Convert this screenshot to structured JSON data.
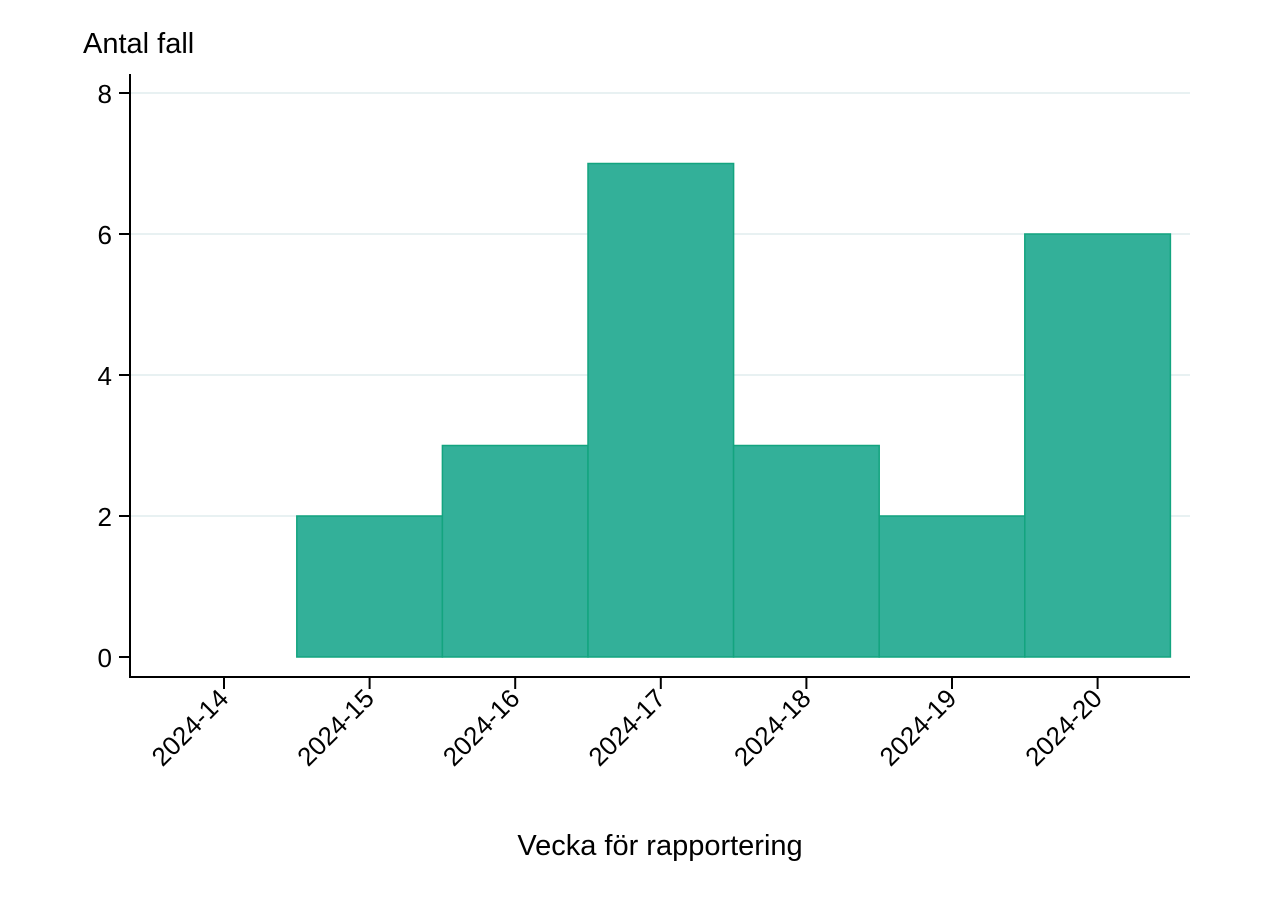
{
  "chart_data": {
    "type": "bar",
    "title": "",
    "ylabel": "Antal fall",
    "xlabel": "Vecka för rapportering",
    "categories": [
      "2024-14",
      "2024-15",
      "2024-16",
      "2024-17",
      "2024-18",
      "2024-19",
      "2024-20"
    ],
    "values": [
      0,
      2,
      3,
      7,
      3,
      2,
      6
    ],
    "ylim": [
      0,
      8
    ],
    "yticks": [
      0,
      2,
      4,
      6,
      8
    ],
    "grid": true,
    "legend": null,
    "colors": {
      "bar_fill": "#33b099",
      "bar_edge": "#13a47f",
      "grid": "#e8f1f2",
      "axis": "#000000"
    }
  }
}
